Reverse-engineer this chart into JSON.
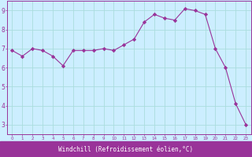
{
  "x": [
    0,
    1,
    2,
    3,
    4,
    5,
    6,
    7,
    8,
    9,
    10,
    11,
    12,
    13,
    14,
    15,
    16,
    17,
    18,
    19,
    20,
    21,
    22,
    23
  ],
  "y": [
    6.9,
    6.6,
    7.0,
    6.9,
    6.6,
    6.1,
    6.9,
    6.9,
    6.9,
    7.0,
    6.9,
    7.2,
    7.5,
    8.4,
    8.8,
    8.6,
    8.5,
    9.1,
    9.0,
    8.8,
    7.0,
    6.0,
    4.1,
    3.0
  ],
  "line_color": "#993399",
  "marker": "D",
  "marker_size": 2.2,
  "bg_color": "#cceeff",
  "grid_color": "#aadddd",
  "xlabel": "Windchill (Refroidissement éolien,°C)",
  "xlabel_bg": "#993399",
  "xlabel_fg": "#ffffff",
  "tick_color": "#993399",
  "spine_color": "#993399",
  "xlim": [
    -0.5,
    23.5
  ],
  "ylim": [
    2.5,
    9.5
  ],
  "yticks": [
    3,
    4,
    5,
    6,
    7,
    8,
    9
  ],
  "xticks": [
    0,
    1,
    2,
    3,
    4,
    5,
    6,
    7,
    8,
    9,
    10,
    11,
    12,
    13,
    14,
    15,
    16,
    17,
    18,
    19,
    20,
    21,
    22,
    23
  ]
}
